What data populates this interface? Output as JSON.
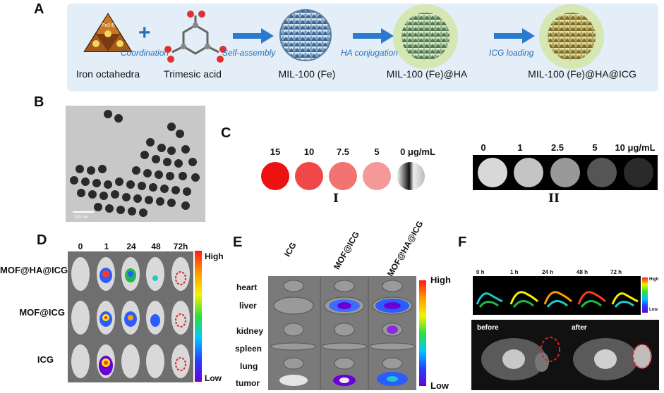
{
  "panels": {
    "a": "A",
    "b": "B",
    "c": "C",
    "d": "D",
    "e": "E",
    "f": "F"
  },
  "scheme": {
    "items": [
      "Iron octahedra",
      "Trimesic acid",
      "MIL-100 (Fe)",
      "MIL-100 (Fe)@HA",
      "MIL-100 (Fe)@HA@ICG"
    ],
    "steps": [
      "Coordination",
      "Self-assembly",
      "HA conjugation",
      "ICG loading"
    ],
    "plus": "+",
    "fe_label": "Fe(III)"
  },
  "tem": {
    "scale_bar": "200 nm"
  },
  "phantom_i": {
    "concentrations": [
      "15",
      "10",
      "7.5",
      "5",
      "0 μg/mL"
    ],
    "label": "I"
  },
  "phantom_ii": {
    "concentrations": [
      "0",
      "1",
      "2.5",
      "5",
      "10 μg/mL"
    ],
    "label": "II"
  },
  "panel_d": {
    "timepoints": [
      "0",
      "1",
      "24",
      "48",
      "72h"
    ],
    "rows": [
      "MOF@HA@ICG",
      "MOF@ICG",
      "ICG"
    ],
    "colorbar": {
      "high": "High",
      "low": "Low"
    }
  },
  "panel_e": {
    "columns": [
      "ICG",
      "MOF@ICG",
      "MOF@HA@ICG"
    ],
    "organs": [
      "heart",
      "liver",
      "kidney",
      "spleen",
      "lung",
      "tumor"
    ],
    "colorbar": {
      "high": "High",
      "low": "Low"
    }
  },
  "panel_f": {
    "timepoints": [
      "0 h",
      "1 h",
      "24 h",
      "48 h",
      "72 h"
    ],
    "colorbar": {
      "high": "High",
      "low": "Low"
    },
    "mri": [
      "before",
      "after"
    ]
  },
  "colors": {
    "accent_blue": "#2a6fb3",
    "roi_red": "#e02020",
    "scheme_bg": "#e3eef8"
  }
}
